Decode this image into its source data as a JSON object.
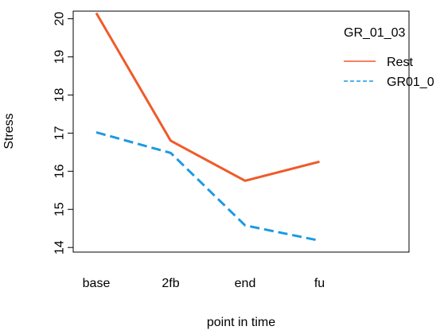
{
  "chart_data": {
    "type": "line",
    "categories": [
      "base",
      "2fb",
      "end",
      "fu"
    ],
    "xlabel": "point in time",
    "ylabel": "Stress",
    "ylim": [
      13.9,
      20.2
    ],
    "yticks": [
      14,
      15,
      16,
      17,
      18,
      19,
      20
    ],
    "grid": false,
    "legend": {
      "title": "GR_01_03",
      "position": "top-right",
      "entries": [
        "Rest",
        "GR01_0"
      ]
    },
    "series": [
      {
        "name": "Rest",
        "values": [
          20.15,
          16.8,
          15.75,
          16.25
        ],
        "color": "#f05a28",
        "style": "solid"
      },
      {
        "name": "GR01_0",
        "values": [
          17.02,
          16.48,
          14.58,
          14.18
        ],
        "color": "#1b9ae4",
        "style": "dashed"
      }
    ]
  }
}
